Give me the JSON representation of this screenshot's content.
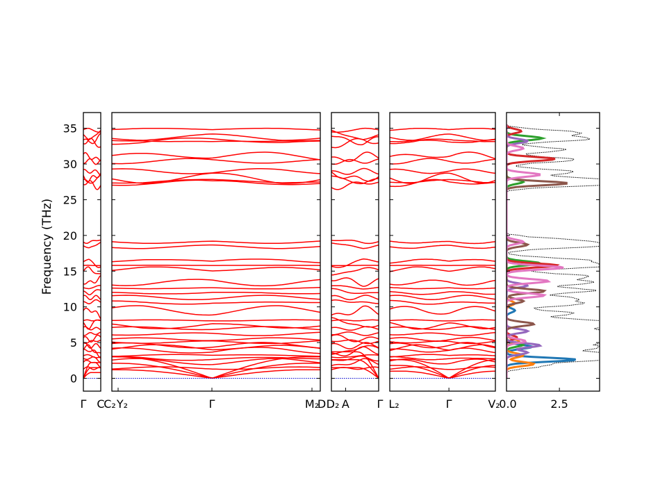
{
  "chart_data": [
    {
      "type": "line",
      "title": "",
      "xlabel": "",
      "ylabel": "Frequency (THz)",
      "ylim": [
        -1.8,
        37.2
      ],
      "yticks": [
        0,
        5,
        10,
        15,
        20,
        25,
        30,
        35
      ],
      "grid": false,
      "line_color": "#ff0000",
      "zero_line_color": "#0000cc",
      "segments": [
        {
          "name": "seg-1",
          "xticks": [
            {
              "label": "Γ",
              "pos": 0
            },
            {
              "label": "C",
              "pos": 1
            }
          ]
        },
        {
          "name": "seg-2",
          "xticks": [
            {
              "label": "C₂",
              "pos": 0
            },
            {
              "label": "Y₂",
              "pos": 0.03
            },
            {
              "label": "Γ",
              "pos": 0.48
            },
            {
              "label": "M₂",
              "pos": 0.96
            },
            {
              "label": "D",
              "pos": 1
            }
          ]
        },
        {
          "name": "seg-3",
          "xticks": [
            {
              "label": "D₂",
              "pos": 0
            },
            {
              "label": "A",
              "pos": 0.3
            },
            {
              "label": "Γ",
              "pos": 1
            }
          ]
        },
        {
          "name": "seg-4",
          "xticks": [
            {
              "label": "L₂",
              "pos": 0
            },
            {
              "label": "Γ",
              "pos": 0.56
            },
            {
              "label": "V₂",
              "pos": 1
            }
          ]
        }
      ],
      "bands_at_gamma_thz": [
        0,
        0,
        0,
        1.4,
        2.1,
        2.6,
        3.2,
        3.7,
        4.1,
        4.6,
        5.1,
        5.6,
        6.2,
        7.0,
        7.6,
        8.1,
        9.2,
        10.6,
        11.3,
        12.1,
        12.7,
        13.6,
        15.1,
        15.8,
        16.3,
        18.6,
        19.1,
        27.3,
        27.9,
        28.3,
        28.9,
        30.4,
        31.1,
        32.9,
        33.6,
        34.1,
        34.8
      ]
    },
    {
      "type": "area",
      "title": "",
      "xlabel": "",
      "ylabel": "",
      "xlim": [
        0,
        4.4
      ],
      "xticks": [
        "0.0",
        "2.5"
      ],
      "ylim": [
        -1.8,
        37.2
      ],
      "series": [
        {
          "color": "#1f77b4",
          "peaks": [
            [
              2.6,
              3.3
            ],
            [
              4.4,
              1.2
            ],
            [
              9.5,
              0.4
            ]
          ]
        },
        {
          "color": "#ff7f0e",
          "peaks": [
            [
              2.0,
              1.3
            ],
            [
              3.2,
              0.8
            ],
            [
              5.2,
              0.6
            ],
            [
              10.5,
              0.4
            ]
          ]
        },
        {
          "color": "#2ca02c",
          "peaks": [
            [
              4.7,
              0.8
            ],
            [
              16.1,
              1.6
            ],
            [
              27.5,
              0.8
            ],
            [
              33.6,
              1.7
            ]
          ]
        },
        {
          "color": "#d62728",
          "peaks": [
            [
              5.7,
              0.5
            ],
            [
              15.8,
              2.4
            ],
            [
              30.7,
              2.3
            ],
            [
              34.6,
              0.7
            ]
          ]
        },
        {
          "color": "#9467bd",
          "peaks": [
            [
              3.6,
              1.0
            ],
            [
              4.6,
              1.6
            ],
            [
              6.6,
              1.0
            ],
            [
              13.0,
              1.0
            ],
            [
              33.2,
              1.0
            ]
          ]
        },
        {
          "color": "#8c564b",
          "peaks": [
            [
              7.6,
              1.3
            ],
            [
              10.8,
              0.8
            ],
            [
              12.2,
              1.8
            ],
            [
              18.7,
              1.0
            ],
            [
              27.3,
              2.9
            ]
          ]
        },
        {
          "color": "#e377c2",
          "peaks": [
            [
              5.2,
              0.9
            ],
            [
              11.6,
              1.8
            ],
            [
              13.6,
              2.0
            ],
            [
              15.5,
              2.7
            ],
            [
              19.1,
              0.8
            ],
            [
              28.5,
              1.6
            ],
            [
              32.2,
              0.8
            ]
          ]
        }
      ],
      "total_line_color": "#000000",
      "total_peaks": [
        [
          1.8,
          1.6
        ],
        [
          2.7,
          4.5
        ],
        [
          3.4,
          4.2
        ],
        [
          4.3,
          3.8
        ],
        [
          5.1,
          3.9
        ],
        [
          5.8,
          3.4
        ],
        [
          6.5,
          4.1
        ],
        [
          7.3,
          3.6
        ],
        [
          8.0,
          4.0
        ],
        [
          9.1,
          3.0
        ],
        [
          10.4,
          3.2
        ],
        [
          11.2,
          2.9
        ],
        [
          12.3,
          4.0
        ],
        [
          13.4,
          3.8
        ],
        [
          14.3,
          3.6
        ],
        [
          15.7,
          4.3
        ],
        [
          16.5,
          3.5
        ],
        [
          18.6,
          4.4
        ],
        [
          19.3,
          2.8
        ],
        [
          27.2,
          4.5
        ],
        [
          27.8,
          4.0
        ],
        [
          28.9,
          3.0
        ],
        [
          30.6,
          3.1
        ],
        [
          32.0,
          2.6
        ],
        [
          33.5,
          3.7
        ],
        [
          34.4,
          3.2
        ]
      ]
    }
  ]
}
